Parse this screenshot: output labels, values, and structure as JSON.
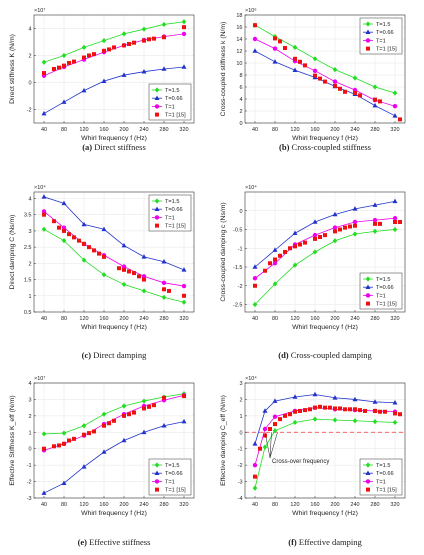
{
  "legend_labels": [
    "T=1.5",
    "T=0.66",
    "T=1",
    "T=1 [15]"
  ],
  "colors": {
    "t15": "#22dd22",
    "t066": "#2233cc",
    "t1": "#ee00ee",
    "t1ref": "#ee1111",
    "zero": "#ee3333",
    "axis": "#333333"
  },
  "x_ticks": [
    "40",
    "80",
    "120",
    "160",
    "200",
    "240",
    "280",
    "320"
  ],
  "charts": [
    {
      "id": "a",
      "type": "line",
      "exponent": "×10⁷",
      "ylabel": "Direct stiffness K (N/m)",
      "xlabel": "Whirl frequency f (Hz)",
      "caption_letter": "(a)",
      "caption_text": " Direct stiffness",
      "ylim": [
        -3,
        5
      ],
      "yticks": [
        -2,
        0,
        2,
        4
      ],
      "ytick_labels": [
        "-2",
        "0",
        "2",
        "4"
      ],
      "legend_pos": "bottom-right",
      "x": [
        40,
        80,
        120,
        160,
        200,
        240,
        280,
        320
      ],
      "series": [
        {
          "name": "T=1.5",
          "values": [
            1.5,
            2.0,
            2.6,
            3.1,
            3.6,
            3.95,
            4.3,
            4.5
          ]
        },
        {
          "name": "T=0.66",
          "values": [
            -2.3,
            -1.45,
            -0.6,
            0.1,
            0.55,
            0.8,
            1.0,
            1.15
          ]
        },
        {
          "name": "T=1",
          "values": [
            0.5,
            1.15,
            1.7,
            2.25,
            2.75,
            3.15,
            3.4,
            3.6
          ]
        }
      ],
      "ref": {
        "name": "T=1 [15]",
        "x": [
          40,
          60,
          70,
          80,
          90,
          100,
          120,
          130,
          140,
          160,
          170,
          180,
          200,
          210,
          220,
          240,
          250,
          260,
          280,
          320
        ],
        "values": [
          0.7,
          1.0,
          1.1,
          1.25,
          1.45,
          1.55,
          1.85,
          2.0,
          2.1,
          2.35,
          2.45,
          2.6,
          2.75,
          2.85,
          2.95,
          3.1,
          3.2,
          3.25,
          3.35,
          4.1
        ]
      }
    },
    {
      "id": "b",
      "type": "line",
      "exponent": "×10⁶",
      "ylabel": "Cross-coupled stiffness k (N/m)",
      "xlabel": "Whirl frequency f (Hz)",
      "caption_letter": "(b)",
      "caption_text": " Cross-coupled stiffness",
      "ylim": [
        0,
        18
      ],
      "yticks": [
        0,
        2,
        4,
        6,
        8,
        10,
        12,
        14,
        16,
        18
      ],
      "ytick_labels": [
        "0",
        "2",
        "4",
        "6",
        "8",
        "10",
        "12",
        "14",
        "16",
        "18"
      ],
      "legend_pos": "top-right",
      "x": [
        40,
        80,
        120,
        160,
        200,
        240,
        280,
        320
      ],
      "series": [
        {
          "name": "T=1.5",
          "values": [
            16.3,
            14.4,
            12.6,
            10.7,
            8.9,
            7.5,
            6.0,
            5.0
          ]
        },
        {
          "name": "T=0.66",
          "values": [
            12.0,
            10.2,
            8.8,
            7.6,
            6.1,
            4.8,
            2.9,
            1.2
          ]
        },
        {
          "name": "T=1",
          "values": [
            14.0,
            12.4,
            10.3,
            8.7,
            6.9,
            5.5,
            3.8,
            2.8
          ]
        }
      ],
      "ref": {
        "name": "T=1 [15]",
        "x": [
          40,
          80,
          90,
          100,
          120,
          130,
          140,
          160,
          170,
          180,
          200,
          210,
          220,
          240,
          250,
          280,
          290,
          330
        ],
        "values": [
          16.3,
          14.1,
          13.6,
          12.5,
          10.7,
          10.2,
          9.6,
          7.9,
          7.4,
          6.9,
          6.2,
          5.7,
          5.2,
          5.0,
          4.6,
          3.9,
          3.6,
          0.6
        ]
      }
    },
    {
      "id": "c",
      "type": "line",
      "exponent": "×10⁴",
      "ylabel": "Direct damping C (Ns/m)",
      "xlabel": "Whirl frequency f (Hz)",
      "caption_letter": "(c)",
      "caption_text": " Direct damping",
      "ylim": [
        0.5,
        4.2
      ],
      "yticks": [
        0.5,
        1,
        1.5,
        2,
        2.5,
        3,
        3.5,
        4
      ],
      "ytick_labels": [
        "0.5",
        "1",
        "1.5",
        "2",
        "2.5",
        "3",
        "3.5",
        "4"
      ],
      "legend_pos": "top-right",
      "x": [
        40,
        80,
        120,
        160,
        200,
        240,
        280,
        320
      ],
      "series": [
        {
          "name": "T=1.5",
          "values": [
            3.05,
            2.7,
            2.1,
            1.65,
            1.35,
            1.15,
            0.95,
            0.8
          ]
        },
        {
          "name": "T=0.66",
          "values": [
            4.05,
            3.85,
            3.2,
            3.05,
            2.55,
            2.2,
            2.05,
            1.8
          ]
        },
        {
          "name": "T=1",
          "values": [
            3.6,
            3.1,
            2.6,
            2.25,
            1.9,
            1.6,
            1.4,
            1.3
          ]
        }
      ],
      "ref": {
        "name": "T=1 [15]",
        "x": [
          40,
          60,
          70,
          80,
          90,
          100,
          110,
          120,
          130,
          140,
          150,
          160,
          190,
          200,
          210,
          220,
          230,
          240,
          280,
          290,
          320
        ],
        "values": [
          3.5,
          3.3,
          3.1,
          3.0,
          2.9,
          2.8,
          2.7,
          2.6,
          2.5,
          2.4,
          2.3,
          2.2,
          1.85,
          1.8,
          1.75,
          1.7,
          1.6,
          1.5,
          1.2,
          1.15,
          1.0
        ]
      }
    },
    {
      "id": "d",
      "type": "line",
      "exponent": "×10⁴",
      "ylabel": "Cross-coupled damping c (Ns/m)",
      "xlabel": "Whirl frequency f (Hz)",
      "caption_letter": "(d)",
      "caption_text": " Cross-coupled damping",
      "ylim": [
        -2.7,
        0.5
      ],
      "yticks": [
        -2.5,
        -2,
        -1.5,
        -1,
        -0.5,
        0
      ],
      "ytick_labels": [
        "-2.5",
        "-2",
        "-1.5",
        "-1",
        "-0.5",
        "0"
      ],
      "legend_pos": "bottom-right",
      "x": [
        40,
        80,
        120,
        160,
        200,
        240,
        280,
        320
      ],
      "series": [
        {
          "name": "T=1.5",
          "values": [
            -2.5,
            -1.95,
            -1.45,
            -1.1,
            -0.8,
            -0.62,
            -0.55,
            -0.5
          ]
        },
        {
          "name": "T=0.66",
          "values": [
            -1.5,
            -1.05,
            -0.6,
            -0.3,
            -0.1,
            0.05,
            0.15,
            0.25
          ]
        },
        {
          "name": "T=1",
          "values": [
            -1.8,
            -1.4,
            -0.9,
            -0.65,
            -0.45,
            -0.3,
            -0.25,
            -0.2
          ]
        }
      ],
      "ref": {
        "name": "T=1 [15]",
        "x": [
          40,
          60,
          70,
          80,
          90,
          100,
          110,
          120,
          130,
          140,
          160,
          170,
          180,
          200,
          210,
          220,
          230,
          240,
          280,
          290,
          320,
          330
        ],
        "values": [
          -2.0,
          -1.6,
          -1.4,
          -1.3,
          -1.2,
          -1.1,
          -1.0,
          -0.95,
          -0.9,
          -0.85,
          -0.75,
          -0.7,
          -0.65,
          -0.55,
          -0.5,
          -0.45,
          -0.42,
          -0.4,
          -0.35,
          -0.35,
          -0.3,
          -0.3
        ]
      }
    },
    {
      "id": "e",
      "type": "line",
      "exponent": "×10⁷",
      "ylabel": "Effective Stiffness K_eff (N/m)",
      "xlabel": "Whirl frequency f (Hz)",
      "caption_letter": "(e)",
      "caption_text": " Effective stiffness",
      "ylim": [
        -3,
        4
      ],
      "yticks": [
        -3,
        -2,
        -1,
        0,
        1,
        2,
        3,
        4
      ],
      "ytick_labels": [
        "-3",
        "-2",
        "-1",
        "0",
        "1",
        "2",
        "3",
        "4"
      ],
      "legend_pos": "bottom-right",
      "x": [
        40,
        80,
        120,
        160,
        200,
        240,
        280,
        320
      ],
      "series": [
        {
          "name": "T=1.5",
          "values": [
            0.9,
            0.95,
            1.4,
            2.1,
            2.6,
            2.9,
            3.15,
            3.35
          ]
        },
        {
          "name": "T=0.66",
          "values": [
            -2.7,
            -2.1,
            -1.1,
            -0.2,
            0.5,
            1.0,
            1.4,
            1.65
          ]
        },
        {
          "name": "T=1",
          "values": [
            -0.1,
            0.3,
            0.8,
            1.5,
            2.1,
            2.6,
            2.95,
            3.25
          ]
        }
      ],
      "ref": {
        "name": "T=1 [15]",
        "x": [
          40,
          60,
          70,
          80,
          90,
          100,
          120,
          130,
          140,
          160,
          170,
          180,
          200,
          210,
          220,
          240,
          250,
          260,
          280,
          320
        ],
        "values": [
          0.0,
          0.15,
          0.2,
          0.3,
          0.5,
          0.6,
          0.85,
          0.95,
          1.05,
          1.4,
          1.55,
          1.7,
          2.0,
          2.1,
          2.2,
          2.45,
          2.55,
          2.65,
          3.1,
          3.2
        ]
      }
    },
    {
      "id": "f",
      "type": "line",
      "exponent": "×10⁴",
      "ylabel": "Effective damping C_eff (N/m)",
      "xlabel": "Whirl frequency f (Hz)",
      "caption_letter": "(f)",
      "caption_text": " Effective damping",
      "ylim": [
        -4,
        3
      ],
      "yticks": [
        -4,
        -3,
        -2,
        -1,
        0,
        1,
        2,
        3
      ],
      "ytick_labels": [
        "-4",
        "-3",
        "-2",
        "-1",
        "0",
        "1",
        "2",
        "3"
      ],
      "legend_pos": "bottom-right",
      "annotation": "Cross-over frequency",
      "x": [
        40,
        60,
        80,
        120,
        160,
        200,
        240,
        280,
        320
      ],
      "series": [
        {
          "name": "T=1.5",
          "values": [
            -3.4,
            -0.9,
            0.1,
            0.6,
            0.8,
            0.75,
            0.7,
            0.65,
            0.6
          ]
        },
        {
          "name": "T=0.66",
          "values": [
            -0.7,
            1.3,
            1.9,
            2.15,
            2.3,
            2.1,
            2.0,
            1.85,
            1.8
          ]
        },
        {
          "name": "T=1",
          "values": [
            -2.0,
            0.2,
            0.95,
            1.3,
            1.5,
            1.4,
            1.35,
            1.3,
            1.25
          ]
        }
      ],
      "ref": {
        "name": "T=1 [15]",
        "x": [
          40,
          50,
          60,
          70,
          80,
          90,
          100,
          110,
          120,
          130,
          140,
          150,
          160,
          170,
          180,
          190,
          200,
          210,
          220,
          230,
          240,
          250,
          260,
          280,
          290,
          300,
          320,
          330
        ],
        "values": [
          -2.7,
          -1.0,
          -0.2,
          0.2,
          0.5,
          0.8,
          1.0,
          1.1,
          1.25,
          1.3,
          1.35,
          1.4,
          1.5,
          1.55,
          1.5,
          1.5,
          1.45,
          1.45,
          1.4,
          1.4,
          1.4,
          1.35,
          1.3,
          1.3,
          1.25,
          1.25,
          1.15,
          1.1
        ]
      }
    }
  ]
}
